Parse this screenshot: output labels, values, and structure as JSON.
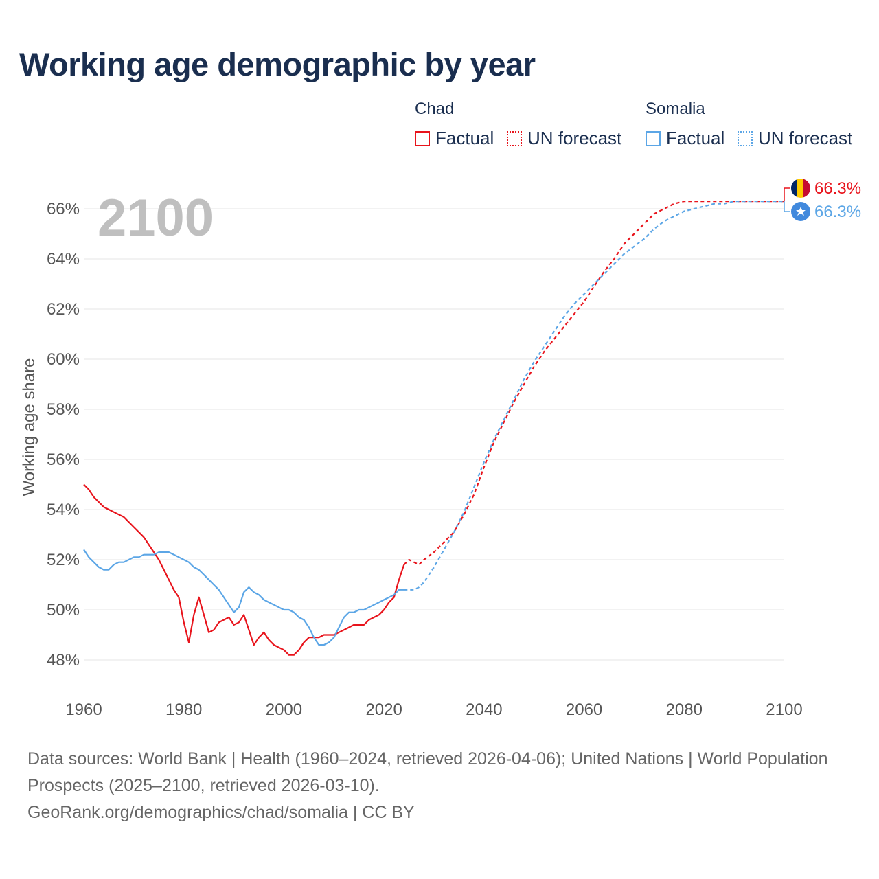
{
  "title": "Working age demographic by year",
  "legend": {
    "groups": [
      {
        "name": "Chad",
        "factual_label": "Factual",
        "forecast_label": "UN forecast",
        "color": "#e8141c"
      },
      {
        "name": "Somalia",
        "factual_label": "Factual",
        "forecast_label": "UN forecast",
        "color": "#5ca6e6"
      }
    ]
  },
  "footer": {
    "sources": "Data sources: World Bank | Health (1960–2024, retrieved 2026-04-06); United Nations | World Population Prospects (2025–2100, retrieved 2026-03-10).",
    "link": "GeoRank.org/demographics/chad/somalia | CC BY"
  },
  "chart_data": {
    "type": "line",
    "title": "Working age demographic by year",
    "xlabel": "",
    "ylabel": "Working age share",
    "year_overlay": "2100",
    "xlim": [
      1960,
      2100
    ],
    "ylim": [
      47,
      67.5
    ],
    "x_ticks": [
      1960,
      1980,
      2000,
      2020,
      2040,
      2060,
      2080,
      2100
    ],
    "x_tick_labels": [
      "1960",
      "1980",
      "2000",
      "2020",
      "2040",
      "2060",
      "2080",
      "2100"
    ],
    "y_ticks": [
      48,
      50,
      52,
      54,
      56,
      58,
      60,
      62,
      64,
      66
    ],
    "y_tick_labels": [
      "48%",
      "50%",
      "52%",
      "54%",
      "56%",
      "58%",
      "60%",
      "62%",
      "64%",
      "66%"
    ],
    "grid": true,
    "series": [
      {
        "name": "Chad",
        "segment": "Factual",
        "color": "#e8141c",
        "dashed": false,
        "x": [
          1960,
          1961,
          1962,
          1963,
          1964,
          1965,
          1966,
          1967,
          1968,
          1969,
          1970,
          1971,
          1972,
          1973,
          1974,
          1975,
          1976,
          1977,
          1978,
          1979,
          1980,
          1981,
          1982,
          1983,
          1984,
          1985,
          1986,
          1987,
          1988,
          1989,
          1990,
          1991,
          1992,
          1993,
          1994,
          1995,
          1996,
          1997,
          1998,
          1999,
          2000,
          2001,
          2002,
          2003,
          2004,
          2005,
          2006,
          2007,
          2008,
          2009,
          2010,
          2011,
          2012,
          2013,
          2014,
          2015,
          2016,
          2017,
          2018,
          2019,
          2020,
          2021,
          2022,
          2023,
          2024
        ],
        "values": [
          55.0,
          54.8,
          54.5,
          54.3,
          54.1,
          54.0,
          53.9,
          53.8,
          53.7,
          53.5,
          53.3,
          53.1,
          52.9,
          52.6,
          52.3,
          52.0,
          51.6,
          51.2,
          50.8,
          50.5,
          49.5,
          48.7,
          49.8,
          50.5,
          49.8,
          49.1,
          49.2,
          49.5,
          49.6,
          49.7,
          49.4,
          49.5,
          49.8,
          49.2,
          48.6,
          48.9,
          49.1,
          48.8,
          48.6,
          48.5,
          48.4,
          48.2,
          48.2,
          48.4,
          48.7,
          48.9,
          48.9,
          48.9,
          49.0,
          49.0,
          49.0,
          49.1,
          49.2,
          49.3,
          49.4,
          49.4,
          49.4,
          49.6,
          49.7,
          49.8,
          50.0,
          50.3,
          50.5,
          51.2,
          51.8
        ]
      },
      {
        "name": "Chad",
        "segment": "UN forecast",
        "color": "#e8141c",
        "dashed": true,
        "x": [
          2024,
          2025,
          2026,
          2027,
          2028,
          2030,
          2032,
          2034,
          2036,
          2038,
          2040,
          2042,
          2044,
          2046,
          2048,
          2050,
          2052,
          2054,
          2056,
          2058,
          2060,
          2062,
          2064,
          2066,
          2068,
          2070,
          2072,
          2074,
          2076,
          2078,
          2080,
          2082,
          2084,
          2086,
          2088,
          2090,
          2092,
          2094,
          2096,
          2098,
          2100
        ],
        "values": [
          51.8,
          52.0,
          51.9,
          51.8,
          52.0,
          52.3,
          52.7,
          53.1,
          53.8,
          54.6,
          55.7,
          56.7,
          57.5,
          58.3,
          59.0,
          59.7,
          60.3,
          60.8,
          61.3,
          61.8,
          62.3,
          62.9,
          63.5,
          64.0,
          64.6,
          65.0,
          65.4,
          65.8,
          66.0,
          66.2,
          66.3,
          66.3,
          66.3,
          66.3,
          66.3,
          66.3,
          66.3,
          66.3,
          66.3,
          66.3,
          66.3
        ]
      },
      {
        "name": "Somalia",
        "segment": "Factual",
        "color": "#5ca6e6",
        "dashed": false,
        "x": [
          1960,
          1961,
          1962,
          1963,
          1964,
          1965,
          1966,
          1967,
          1968,
          1969,
          1970,
          1971,
          1972,
          1973,
          1974,
          1975,
          1976,
          1977,
          1978,
          1979,
          1980,
          1981,
          1982,
          1983,
          1984,
          1985,
          1986,
          1987,
          1988,
          1989,
          1990,
          1991,
          1992,
          1993,
          1994,
          1995,
          1996,
          1997,
          1998,
          1999,
          2000,
          2001,
          2002,
          2003,
          2004,
          2005,
          2006,
          2007,
          2008,
          2009,
          2010,
          2011,
          2012,
          2013,
          2014,
          2015,
          2016,
          2017,
          2018,
          2019,
          2020,
          2021,
          2022,
          2023,
          2024
        ],
        "values": [
          52.4,
          52.1,
          51.9,
          51.7,
          51.6,
          51.6,
          51.8,
          51.9,
          51.9,
          52.0,
          52.1,
          52.1,
          52.2,
          52.2,
          52.2,
          52.3,
          52.3,
          52.3,
          52.2,
          52.1,
          52.0,
          51.9,
          51.7,
          51.6,
          51.4,
          51.2,
          51.0,
          50.8,
          50.5,
          50.2,
          49.9,
          50.1,
          50.7,
          50.9,
          50.7,
          50.6,
          50.4,
          50.3,
          50.2,
          50.1,
          50.0,
          50.0,
          49.9,
          49.7,
          49.6,
          49.3,
          48.9,
          48.6,
          48.6,
          48.7,
          48.9,
          49.3,
          49.7,
          49.9,
          49.9,
          50.0,
          50.0,
          50.1,
          50.2,
          50.3,
          50.4,
          50.5,
          50.6,
          50.8,
          50.8
        ]
      },
      {
        "name": "Somalia",
        "segment": "UN forecast",
        "color": "#5ca6e6",
        "dashed": true,
        "x": [
          2024,
          2025,
          2026,
          2027,
          2028,
          2030,
          2032,
          2034,
          2036,
          2038,
          2040,
          2042,
          2044,
          2046,
          2048,
          2050,
          2052,
          2054,
          2056,
          2058,
          2060,
          2062,
          2064,
          2066,
          2068,
          2070,
          2072,
          2074,
          2076,
          2078,
          2080,
          2082,
          2084,
          2086,
          2088,
          2090,
          2092,
          2094,
          2096,
          2098,
          2100
        ],
        "values": [
          50.8,
          50.8,
          50.8,
          50.9,
          51.1,
          51.7,
          52.4,
          53.1,
          53.9,
          54.9,
          55.9,
          56.8,
          57.6,
          58.4,
          59.2,
          59.9,
          60.5,
          61.1,
          61.7,
          62.2,
          62.6,
          63.0,
          63.4,
          63.8,
          64.2,
          64.5,
          64.8,
          65.2,
          65.5,
          65.7,
          65.9,
          66.0,
          66.1,
          66.2,
          66.2,
          66.3,
          66.3,
          66.3,
          66.3,
          66.3,
          66.3
        ]
      }
    ],
    "end_labels": [
      {
        "name": "Chad",
        "label": "66.3%",
        "color": "#e8141c"
      },
      {
        "name": "Somalia",
        "label": "66.3%",
        "color": "#5ca6e6"
      }
    ]
  }
}
